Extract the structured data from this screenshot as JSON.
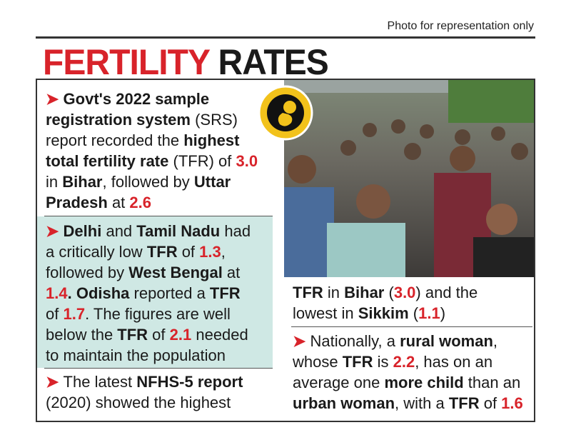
{
  "caption": "Photo for representation only",
  "title": [
    {
      "text": "FERTILITY",
      "style": "red"
    },
    {
      "text": " RATES",
      "style": "bold"
    }
  ],
  "paragraphs": [
    {
      "lines": [
        [
          {
            "text": "➤ ",
            "style": "red"
          },
          {
            "text": "Govt's 2022 sample",
            "style": "bold"
          }
        ],
        [
          {
            "text": "registration system",
            "style": "bold"
          },
          {
            "text": " (SRS)",
            "style": "plain"
          }
        ],
        [
          {
            "text": "report recorded the ",
            "style": "plain"
          },
          {
            "text": "highest",
            "style": "bold"
          }
        ],
        [
          {
            "text": "total fertility rate",
            "style": "bold"
          },
          {
            "text": " (TFR) of ",
            "style": "plain"
          },
          {
            "text": "3.0",
            "style": "red"
          }
        ],
        [
          {
            "text": "in ",
            "style": "plain"
          },
          {
            "text": "Bihar",
            "style": "bold"
          },
          {
            "text": ", followed by ",
            "style": "plain"
          },
          {
            "text": "Uttar",
            "style": "bold"
          }
        ],
        [
          {
            "text": "Pradesh",
            "style": "bold"
          },
          {
            "text": " at ",
            "style": "plain"
          },
          {
            "text": "2.6",
            "style": "red"
          }
        ]
      ]
    },
    {
      "lines": [
        [
          {
            "text": "➤ ",
            "style": "red"
          },
          {
            "text": "Delhi",
            "style": "bold"
          },
          {
            "text": " and ",
            "style": "plain"
          },
          {
            "text": "Tamil Nadu",
            "style": "bold"
          },
          {
            "text": " had",
            "style": "plain"
          }
        ],
        [
          {
            "text": "a critically low ",
            "style": "plain"
          },
          {
            "text": "TFR",
            "style": "bold"
          },
          {
            "text": " of ",
            "style": "plain"
          },
          {
            "text": "1.3",
            "style": "red"
          },
          {
            "text": ",",
            "style": "plain"
          }
        ],
        [
          {
            "text": "followed by ",
            "style": "plain"
          },
          {
            "text": "West Bengal",
            "style": "bold"
          },
          {
            "text": " at",
            "style": "plain"
          }
        ],
        [
          {
            "text": "1.4",
            "style": "red"
          },
          {
            "text": ". ",
            "style": "bold"
          },
          {
            "text": "Odisha",
            "style": "bold"
          },
          {
            "text": " reported a ",
            "style": "plain"
          },
          {
            "text": "TFR",
            "style": "bold"
          }
        ],
        [
          {
            "text": "of ",
            "style": "plain"
          },
          {
            "text": "1.7",
            "style": "red"
          },
          {
            "text": ". The figures are well",
            "style": "plain"
          }
        ],
        [
          {
            "text": "below the ",
            "style": "plain"
          },
          {
            "text": "TFR",
            "style": "bold"
          },
          {
            "text": " of ",
            "style": "plain"
          },
          {
            "text": "2.1",
            "style": "red"
          },
          {
            "text": " needed",
            "style": "plain"
          }
        ],
        [
          {
            "text": "to maintain the population",
            "style": "plain"
          }
        ]
      ]
    },
    {
      "lines": [
        [
          {
            "text": "➤ ",
            "style": "red"
          },
          {
            "text": "The latest ",
            "style": "plain"
          },
          {
            "text": "NFHS-5 report",
            "style": "bold"
          }
        ],
        [
          {
            "text": "(2020) showed the highest",
            "style": "plain"
          }
        ]
      ]
    },
    {
      "lines": [
        [
          {
            "text": "TFR",
            "style": "bold"
          },
          {
            "text": " in ",
            "style": "plain"
          },
          {
            "text": "Bihar",
            "style": "bold"
          },
          {
            "text": " (",
            "style": "plain"
          },
          {
            "text": "3.0",
            "style": "red"
          },
          {
            "text": ") and the",
            "style": "plain"
          }
        ],
        [
          {
            "text": "lowest in ",
            "style": "plain"
          },
          {
            "text": "Sikkim",
            "style": "bold"
          },
          {
            "text": " (",
            "style": "plain"
          },
          {
            "text": "1.1",
            "style": "red"
          },
          {
            "text": ")",
            "style": "plain"
          }
        ]
      ]
    },
    {
      "lines": [
        [
          {
            "text": "➤ ",
            "style": "red"
          },
          {
            "text": "Nationally, a ",
            "style": "plain"
          },
          {
            "text": "rural woman",
            "style": "bold"
          },
          {
            "text": ",",
            "style": "plain"
          }
        ],
        [
          {
            "text": "whose ",
            "style": "plain"
          },
          {
            "text": "TFR",
            "style": "bold"
          },
          {
            "text": " is ",
            "style": "plain"
          },
          {
            "text": "2.2",
            "style": "red"
          },
          {
            "text": ", has on an",
            "style": "plain"
          }
        ],
        [
          {
            "text": "average one ",
            "style": "plain"
          },
          {
            "text": "more child",
            "style": "bold"
          },
          {
            "text": " than an",
            "style": "plain"
          }
        ],
        [
          {
            "text": "urban woman",
            "style": "bold"
          },
          {
            "text": ", with a ",
            "style": "plain"
          },
          {
            "text": "TFR",
            "style": "bold"
          },
          {
            "text": " of ",
            "style": "plain"
          },
          {
            "text": "1.6",
            "style": "red"
          }
        ]
      ]
    }
  ]
}
